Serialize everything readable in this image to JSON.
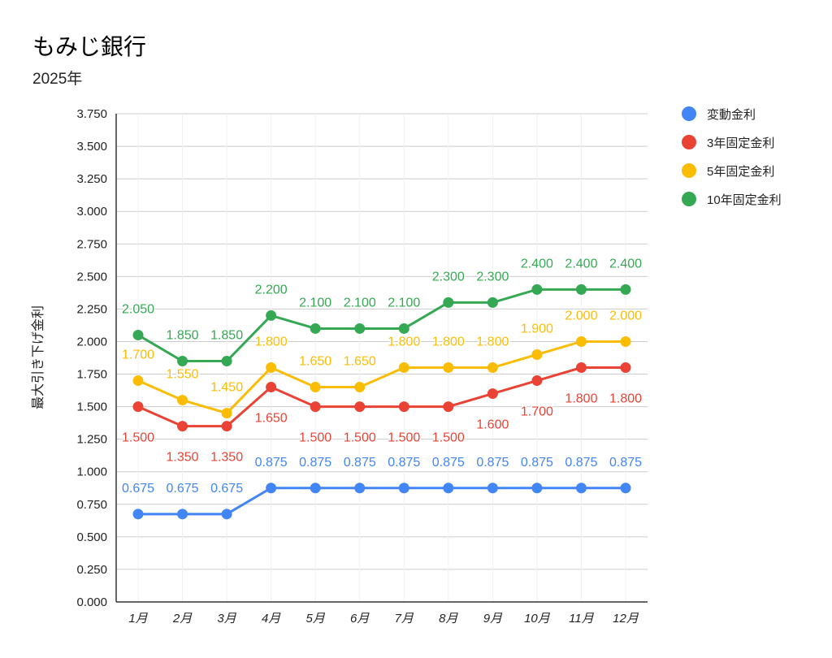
{
  "title": "もみじ銀行",
  "subtitle": "2025年",
  "chart_data": {
    "type": "line",
    "title": "もみじ銀行",
    "subtitle": "2025年",
    "xlabel": "",
    "ylabel": "最大引き下げ金利",
    "ylim": [
      0,
      3.75
    ],
    "yticks": [
      "0.000",
      "0.250",
      "0.500",
      "0.750",
      "1.000",
      "1.250",
      "1.500",
      "1.750",
      "2.000",
      "2.250",
      "2.500",
      "2.750",
      "3.000",
      "3.250",
      "3.500",
      "3.750"
    ],
    "grid": true,
    "legend_position": "right",
    "categories": [
      "1月",
      "2月",
      "3月",
      "4月",
      "5月",
      "6月",
      "7月",
      "8月",
      "9月",
      "10月",
      "11月",
      "12月"
    ],
    "series": [
      {
        "name": "変動金利",
        "color": "#4285F4",
        "label_position": "above",
        "values": [
          0.675,
          0.675,
          0.675,
          0.875,
          0.875,
          0.875,
          0.875,
          0.875,
          0.875,
          0.875,
          0.875,
          0.875
        ]
      },
      {
        "name": "3年固定金利",
        "color": "#EA4335",
        "label_position": "below",
        "values": [
          1.5,
          1.35,
          1.35,
          1.65,
          1.5,
          1.5,
          1.5,
          1.5,
          1.6,
          1.7,
          1.8,
          1.8
        ]
      },
      {
        "name": "5年固定金利",
        "color": "#FBBC04",
        "label_position": "above",
        "values": [
          1.7,
          1.55,
          1.45,
          1.8,
          1.65,
          1.65,
          1.8,
          1.8,
          1.8,
          1.9,
          2.0,
          2.0
        ]
      },
      {
        "name": "10年固定金利",
        "color": "#34A853",
        "label_position": "above",
        "values": [
          2.05,
          1.85,
          1.85,
          2.2,
          2.1,
          2.1,
          2.1,
          2.3,
          2.3,
          2.4,
          2.4,
          2.4
        ]
      }
    ]
  }
}
